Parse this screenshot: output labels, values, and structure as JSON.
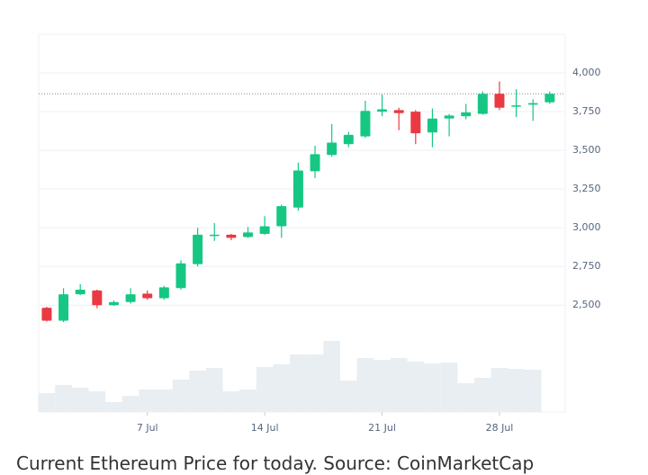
{
  "chart_data": {
    "type": "candlestick",
    "caption": "Current Ethereum Price for today. Source: CoinMarketCap",
    "x": [
      1,
      2,
      3,
      4,
      5,
      6,
      7,
      8,
      9,
      10,
      11,
      12,
      13,
      14,
      15,
      16,
      17,
      18,
      19,
      20,
      21,
      22,
      23,
      24,
      25,
      26,
      27,
      28,
      29,
      30,
      31
    ],
    "open": [
      2483,
      2400,
      2570,
      2595,
      2500,
      2520,
      2575,
      2545,
      2610,
      2765,
      2950,
      2955,
      2940,
      2960,
      3010,
      3130,
      3365,
      3470,
      3540,
      3590,
      3750,
      3760,
      3750,
      3615,
      3705,
      3720,
      3735,
      3865,
      3785,
      3795,
      3810
    ],
    "high": [
      2490,
      2610,
      2635,
      2600,
      2530,
      2610,
      2595,
      2625,
      2790,
      3000,
      3030,
      2960,
      3005,
      3075,
      3150,
      3420,
      3530,
      3670,
      3620,
      3820,
      3860,
      3775,
      3760,
      3770,
      3735,
      3800,
      3880,
      3945,
      3895,
      3830,
      3880
    ],
    "low": [
      2395,
      2390,
      2565,
      2480,
      2495,
      2510,
      2535,
      2535,
      2600,
      2750,
      2915,
      2920,
      2935,
      2955,
      2935,
      3110,
      3320,
      3460,
      3520,
      3580,
      3720,
      3630,
      3540,
      3520,
      3590,
      3700,
      3730,
      3760,
      3715,
      3690,
      3800
    ],
    "close": [
      2400,
      2570,
      2600,
      2500,
      2520,
      2570,
      2545,
      2615,
      2770,
      2955,
      2955,
      2935,
      2970,
      3010,
      3140,
      3370,
      3475,
      3550,
      3600,
      3755,
      3765,
      3740,
      3610,
      3705,
      3725,
      3745,
      3865,
      3775,
      3790,
      3805,
      3865
    ],
    "volumes": [
      21,
      30,
      27,
      23,
      11,
      18,
      25,
      25,
      36,
      46,
      49,
      23,
      25,
      50,
      53,
      64,
      64,
      79,
      35,
      60,
      58,
      60,
      56,
      54,
      55,
      32,
      38,
      49,
      48,
      47,
      null
    ],
    "volume_lim": [
      0,
      100
    ],
    "up_color": "#16c784",
    "down_color": "#ea3943",
    "volume_color": "#e8eef1",
    "xlim": [
      0.52,
      31.92
    ],
    "xticks": [
      {
        "value": 7,
        "label": "7 Jul"
      },
      {
        "value": 14,
        "label": "14 Jul"
      },
      {
        "value": 21,
        "label": "21 Jul"
      },
      {
        "value": 28,
        "label": "28 Jul"
      }
    ],
    "ylim": [
      1810,
      4250
    ],
    "yticks": [
      {
        "value": 2500,
        "label": "2,500"
      },
      {
        "value": 2750,
        "label": "2,750"
      },
      {
        "value": 3000,
        "label": "3,000"
      },
      {
        "value": 3250,
        "label": "3,250"
      },
      {
        "value": 3500,
        "label": "3,500"
      },
      {
        "value": 3750,
        "label": "3,750"
      },
      {
        "value": 4000,
        "label": "4,000"
      }
    ],
    "grid": true
  }
}
